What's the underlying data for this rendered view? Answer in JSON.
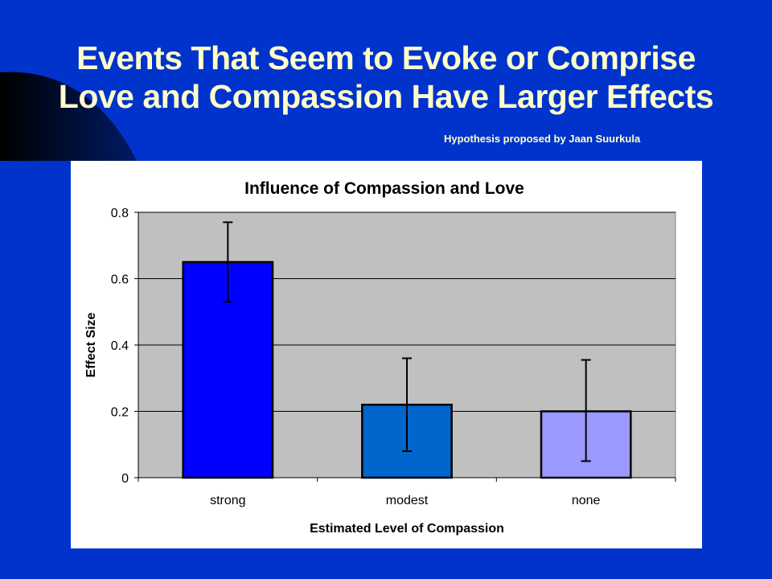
{
  "slide": {
    "title_line1": "Events That Seem to Evoke or Comprise",
    "title_line2": "Love and Compassion Have Larger Effects",
    "subtitle": "Hypothesis proposed by Jaan Suurkula",
    "colors": {
      "background": "#0033cc",
      "title_text": "#ffffcc",
      "swoosh": "#000e3a"
    }
  },
  "chart_data": {
    "type": "bar",
    "title": "Influence of Compassion and Love",
    "xlabel": "Estimated Level of Compassion",
    "ylabel": "Effect Size",
    "categories": [
      "strong",
      "modest",
      "none"
    ],
    "values": [
      0.65,
      0.22,
      0.2
    ],
    "error_low": [
      0.53,
      0.08,
      0.05
    ],
    "error_high": [
      0.77,
      0.36,
      0.355
    ],
    "bar_colors": [
      "#0000ff",
      "#0066cc",
      "#9999ff"
    ],
    "ylim": [
      0,
      0.8
    ],
    "yticks": [
      0,
      0.2,
      0.4,
      0.6,
      0.8
    ],
    "ytick_labels": [
      "0",
      "0.2",
      "0.4",
      "0.6",
      "0.8"
    ],
    "grid": true,
    "plot_background": "#c0c0c0"
  }
}
